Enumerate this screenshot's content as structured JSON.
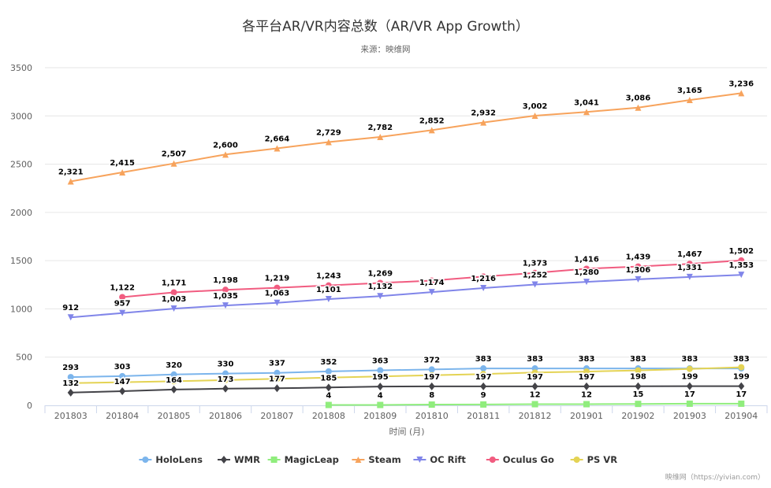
{
  "colors": {
    "HoloLens": "#7cb5ec",
    "WMR": "#434348",
    "MagicLeap": "#90ed7d",
    "Steam": "#f7a35c",
    "OC Rift": "#8085e9",
    "Oculus Go": "#f15c80",
    "PS VR": "#e4d354",
    "grid": "#e6e6e6",
    "axis": "#ccd6eb"
  },
  "credit": "映维网（https://yivian.com）",
  "chart_data": {
    "type": "line",
    "title": "各平台AR/VR内容总数（AR/VR App Growth）",
    "subtitle": "来源：映维网",
    "xlabel": "时间 (月)",
    "ylabel": "",
    "ylim": [
      0,
      3500
    ],
    "yticks": [
      0,
      500,
      1000,
      1500,
      2000,
      2500,
      3000,
      3500
    ],
    "grid": true,
    "legend_position": "bottom",
    "categories": [
      "201803",
      "201804",
      "201805",
      "201806",
      "201807",
      "201808",
      "201809",
      "201810",
      "201811",
      "201812",
      "201901",
      "201902",
      "201903",
      "201904"
    ],
    "series": [
      {
        "name": "HoloLens",
        "marker": "circle",
        "values": [
          293,
          303,
          320,
          330,
          337,
          352,
          363,
          372,
          383,
          383,
          383,
          383,
          383,
          383
        ],
        "labels": [
          "293",
          "303",
          "320",
          "330",
          "337",
          "352",
          "363",
          "372",
          "383",
          "383",
          "383",
          "383",
          "383",
          "383"
        ]
      },
      {
        "name": "WMR",
        "marker": "diamond",
        "values": [
          132,
          147,
          164,
          173,
          177,
          185,
          195,
          197,
          197,
          197,
          197,
          198,
          199,
          199
        ],
        "labels": [
          "132",
          "147",
          "164",
          "173",
          "177",
          "185",
          "195",
          "197",
          "197",
          "197",
          "197",
          "198",
          "199",
          "199"
        ]
      },
      {
        "name": "MagicLeap",
        "marker": "square",
        "values": [
          null,
          null,
          null,
          null,
          null,
          4,
          4,
          8,
          9,
          12,
          12,
          15,
          17,
          17
        ],
        "labels": [
          null,
          null,
          null,
          null,
          null,
          "4",
          "4",
          "8",
          "9",
          "12",
          "12",
          "15",
          "17",
          "17"
        ]
      },
      {
        "name": "Steam",
        "marker": "triangle",
        "values": [
          2321,
          2415,
          2507,
          2600,
          2664,
          2729,
          2782,
          2852,
          2932,
          3002,
          3041,
          3086,
          3165,
          3236
        ],
        "labels": [
          "2,321",
          "2,415",
          "2,507",
          "2,600",
          "2,664",
          "2,729",
          "2,782",
          "2,852",
          "2,932",
          "3,002",
          "3,041",
          "3,086",
          "3,165",
          "3,236"
        ]
      },
      {
        "name": "OC Rift",
        "marker": "triangle-down",
        "values": [
          912,
          957,
          1003,
          1035,
          1063,
          1101,
          1132,
          1174,
          1216,
          1252,
          1280,
          1306,
          1331,
          1353
        ],
        "labels": [
          "912",
          "957",
          "1,003",
          "1,035",
          "1,063",
          "1,101",
          "1,132",
          "1,174",
          "1,216",
          "1,252",
          "1,280",
          "1,306",
          "1,331",
          "1,353"
        ]
      },
      {
        "name": "Oculus Go",
        "marker": "circle",
        "values": [
          null,
          1122,
          1171,
          1198,
          1219,
          1243,
          1269,
          1293,
          1335,
          1373,
          1416,
          1439,
          1467,
          1502
        ],
        "labels": [
          null,
          "1,122",
          "1,171",
          "1,198",
          "1,219",
          "1,243",
          "1,269",
          null,
          null,
          "1,373",
          "1,416",
          "1,439",
          "1,467",
          "1,502"
        ]
      },
      {
        "name": "PS VR",
        "marker": "circle",
        "values": [
          230,
          240,
          250,
          262,
          275,
          287,
          300,
          312,
          325,
          340,
          350,
          362,
          378,
          395
        ],
        "labels": [
          null,
          null,
          null,
          null,
          null,
          null,
          null,
          null,
          null,
          null,
          null,
          null,
          null,
          null
        ]
      }
    ]
  }
}
